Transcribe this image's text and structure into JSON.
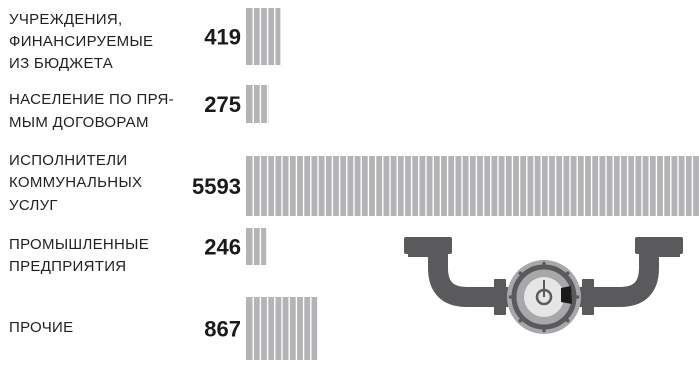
{
  "chart_data": {
    "type": "bar",
    "orientation": "horizontal",
    "categories": [
      [
        "УЧРЕЖДЕНИЯ,",
        "ФИНАНСИРУЕМЫЕ",
        "ИЗ БЮДЖЕТА"
      ],
      [
        "НАСЕЛЕНИЕ ПО ПРЯ-",
        "МЫМ ДОГОВОРАМ"
      ],
      [
        "ИСПОЛНИТЕЛИ",
        "КОММУНАЛЬНЫХ",
        "УСЛУГ"
      ],
      [
        "ПРОМЫШЛЕННЫЕ",
        "ПРЕДПРИЯТИЯ"
      ],
      [
        "ПРОЧИЕ"
      ]
    ],
    "values": [
      419,
      275,
      5593,
      246,
      867
    ],
    "value_labels": [
      "419",
      "275",
      "5593",
      "246",
      "867"
    ],
    "xlim": [
      0,
      5593
    ],
    "bar_color": "#b4b4b6",
    "segment_line_color": "#ffffff",
    "grid": false,
    "legend": "none",
    "title": "",
    "xlabel": "",
    "ylabel": ""
  },
  "illustration": {
    "icon": "pipe-with-gauge-icon",
    "pipe_color": "#5a5a5c",
    "gauge_ring_color": "#a8a8aa",
    "gauge_face_color": "#e6e6e6",
    "gauge_mark_color": "#1a1a1a"
  }
}
